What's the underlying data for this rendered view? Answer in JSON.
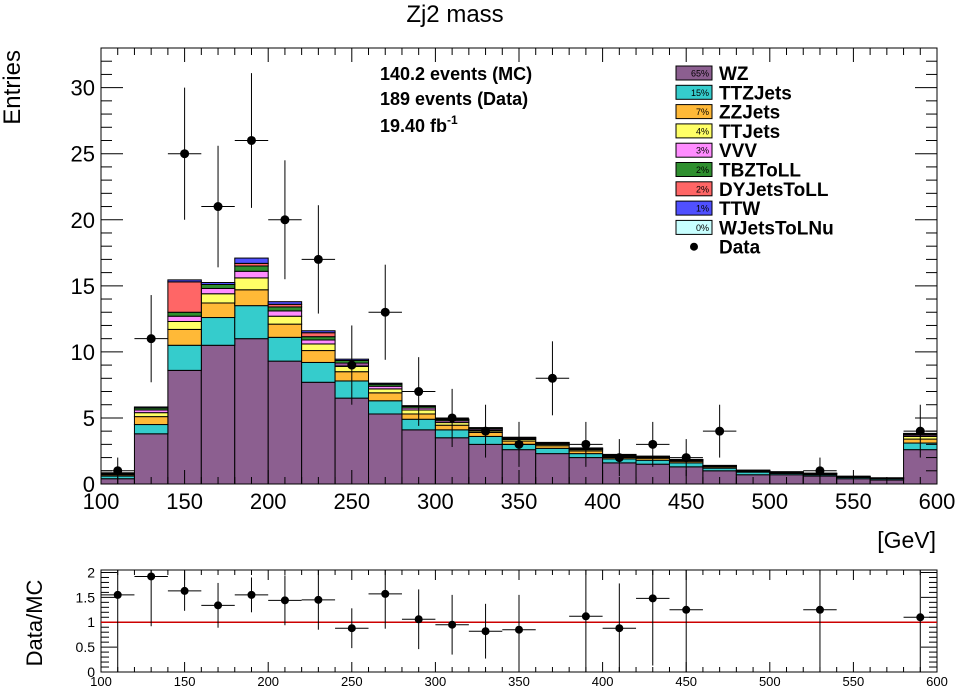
{
  "chart_data": [
    {
      "type": "bar",
      "stacked": true,
      "title": "Zj2 mass",
      "ylabel": "Entries",
      "xlabel": "[GeV]",
      "xlim": [
        100,
        600
      ],
      "ylim": [
        0,
        33
      ],
      "x_ticks": [
        "100",
        "150",
        "200",
        "250",
        "300",
        "350",
        "400",
        "450",
        "500",
        "550",
        "600"
      ],
      "y_ticks": [
        "0",
        "5",
        "10",
        "15",
        "20",
        "25",
        "30"
      ],
      "bin_edges": [
        100,
        120,
        140,
        160,
        180,
        200,
        220,
        240,
        260,
        280,
        300,
        320,
        340,
        360,
        380,
        400,
        420,
        440,
        460,
        480,
        500,
        520,
        540,
        560,
        580,
        600
      ],
      "info": {
        "mc_events": "140.2 events (MC)",
        "data_events": "189 events (Data)",
        "lumi": "19.40 fb",
        "lumi_exp": "-1"
      },
      "series": [
        {
          "name": "WZ",
          "pct": "65%",
          "color": "#8c5f90",
          "values": [
            0.4,
            3.8,
            8.6,
            10.5,
            11.0,
            9.3,
            7.7,
            6.5,
            5.3,
            4.1,
            3.5,
            3.0,
            2.6,
            2.3,
            2.0,
            1.6,
            1.5,
            1.3,
            1.0,
            0.7,
            0.7,
            0.6,
            0.4,
            0.3,
            2.6
          ]
        },
        {
          "name": "TTZJets",
          "pct": "15%",
          "color": "#35cccc",
          "values": [
            0.2,
            0.7,
            1.9,
            2.1,
            2.5,
            1.8,
            1.5,
            1.3,
            1.0,
            0.8,
            0.6,
            0.6,
            0.4,
            0.4,
            0.3,
            0.3,
            0.3,
            0.3,
            0.2,
            0.2,
            0.1,
            0.1,
            0.1,
            0.1,
            0.5
          ]
        },
        {
          "name": "ZZJets",
          "pct": "7%",
          "color": "#ffb937",
          "values": [
            0.1,
            0.6,
            1.2,
            1.1,
            1.2,
            1.0,
            0.9,
            0.7,
            0.6,
            0.4,
            0.35,
            0.3,
            0.25,
            0.2,
            0.2,
            0.15,
            0.15,
            0.12,
            0.1,
            0.06,
            0.05,
            0.05,
            0.05,
            0.03,
            0.3
          ]
        },
        {
          "name": "TTJets",
          "pct": "4%",
          "color": "#ffff66",
          "values": [
            0.05,
            0.3,
            0.6,
            0.7,
            0.9,
            0.6,
            0.5,
            0.4,
            0.3,
            0.3,
            0.2,
            0.15,
            0.12,
            0.1,
            0.1,
            0.08,
            0.07,
            0.06,
            0.05,
            0.04,
            0.03,
            0.03,
            0.02,
            0.02,
            0.2
          ]
        },
        {
          "name": "VVV",
          "pct": "3%",
          "color": "#ff8cff",
          "values": [
            0.05,
            0.2,
            0.4,
            0.4,
            0.5,
            0.4,
            0.3,
            0.25,
            0.2,
            0.15,
            0.12,
            0.1,
            0.08,
            0.07,
            0.06,
            0.05,
            0.04,
            0.04,
            0.03,
            0.02,
            0.02,
            0.02,
            0.01,
            0.01,
            0.1
          ]
        },
        {
          "name": "TBZToLL",
          "pct": "2%",
          "color": "#2f8f2f",
          "values": [
            0.03,
            0.15,
            0.3,
            0.3,
            0.4,
            0.3,
            0.25,
            0.2,
            0.15,
            0.12,
            0.1,
            0.08,
            0.06,
            0.05,
            0.05,
            0.04,
            0.03,
            0.03,
            0.02,
            0.02,
            0.02,
            0.01,
            0.01,
            0.01,
            0.08
          ]
        },
        {
          "name": "DYJetsToLL",
          "pct": "2%",
          "color": "#ff6666",
          "values": [
            0.0,
            0.0,
            2.3,
            0.0,
            0.2,
            0.2,
            0.3,
            0.0,
            0.0,
            0.0,
            0.0,
            0.0,
            0.0,
            0.0,
            0.0,
            0.0,
            0.0,
            0.0,
            0.0,
            0.0,
            0.0,
            0.0,
            0.0,
            0.0,
            0.0
          ]
        },
        {
          "name": "TTW",
          "pct": "1%",
          "color": "#5050ff",
          "values": [
            0.02,
            0.08,
            0.15,
            0.15,
            0.4,
            0.2,
            0.15,
            0.1,
            0.08,
            0.06,
            0.05,
            0.04,
            0.03,
            0.03,
            0.02,
            0.02,
            0.02,
            0.01,
            0.01,
            0.01,
            0.01,
            0.01,
            0.0,
            0.0,
            0.05
          ]
        },
        {
          "name": "WJetsToLNu",
          "pct": "0%",
          "color": "#c8ffff",
          "values": [
            0.0,
            0.0,
            0.0,
            0.0,
            0.0,
            0.0,
            0.0,
            0.0,
            0.0,
            0.0,
            0.0,
            0.0,
            0.0,
            0.0,
            0.0,
            0.0,
            0.0,
            0.0,
            0.0,
            0.0,
            0.0,
            0.0,
            0.0,
            0.0,
            0.0
          ]
        }
      ],
      "data_series": {
        "name": "Data",
        "points": [
          {
            "x": 110,
            "y": 1,
            "err": 1.0
          },
          {
            "x": 130,
            "y": 11,
            "err": 3.3
          },
          {
            "x": 150,
            "y": 25,
            "err": 5.0
          },
          {
            "x": 170,
            "y": 21,
            "err": 4.6
          },
          {
            "x": 190,
            "y": 26,
            "err": 5.1
          },
          {
            "x": 210,
            "y": 20,
            "err": 4.5
          },
          {
            "x": 230,
            "y": 17,
            "err": 4.1
          },
          {
            "x": 250,
            "y": 9,
            "err": 3.0
          },
          {
            "x": 270,
            "y": 13,
            "err": 3.6
          },
          {
            "x": 290,
            "y": 7,
            "err": 2.6
          },
          {
            "x": 310,
            "y": 5,
            "err": 2.2
          },
          {
            "x": 330,
            "y": 4,
            "err": 2.0
          },
          {
            "x": 350,
            "y": 3,
            "err": 1.7
          },
          {
            "x": 370,
            "y": 8,
            "err": 2.8
          },
          {
            "x": 390,
            "y": 3,
            "err": 1.7
          },
          {
            "x": 410,
            "y": 2,
            "err": 1.4
          },
          {
            "x": 430,
            "y": 3,
            "err": 1.7
          },
          {
            "x": 450,
            "y": 2,
            "err": 1.4
          },
          {
            "x": 470,
            "y": 4,
            "err": 2.0
          },
          {
            "x": 530,
            "y": 1,
            "err": 1.0
          },
          {
            "x": 590,
            "y": 4,
            "err": 2.0
          }
        ]
      }
    },
    {
      "type": "scatter",
      "ylabel": "Data/MC",
      "xlim": [
        100,
        600
      ],
      "ylim": [
        0,
        2.05
      ],
      "x_ticks": [
        "100",
        "150",
        "200",
        "250",
        "300",
        "350",
        "400",
        "450",
        "500",
        "550",
        "600"
      ],
      "y_ticks": [
        "0",
        "0.5",
        "1",
        "1.5",
        "2"
      ],
      "reference_line": 1,
      "reference_color": "#cc0000",
      "points": [
        {
          "x": 110,
          "y": 1.55,
          "err": 1.6
        },
        {
          "x": 130,
          "y": 1.92,
          "err": 1.0
        },
        {
          "x": 150,
          "y": 1.63,
          "err": 0.4
        },
        {
          "x": 170,
          "y": 1.34,
          "err": 0.45
        },
        {
          "x": 190,
          "y": 1.55,
          "err": 0.35
        },
        {
          "x": 210,
          "y": 1.44,
          "err": 0.5
        },
        {
          "x": 230,
          "y": 1.45,
          "err": 0.6
        },
        {
          "x": 250,
          "y": 0.88,
          "err": 0.4
        },
        {
          "x": 270,
          "y": 1.57,
          "err": 0.7
        },
        {
          "x": 290,
          "y": 1.06,
          "err": 0.6
        },
        {
          "x": 310,
          "y": 0.95,
          "err": 0.6
        },
        {
          "x": 330,
          "y": 0.82,
          "err": 0.55
        },
        {
          "x": 350,
          "y": 0.85,
          "err": 0.7
        },
        {
          "x": 390,
          "y": 1.12,
          "err": 1.2
        },
        {
          "x": 410,
          "y": 0.88,
          "err": 0.9
        },
        {
          "x": 430,
          "y": 1.48,
          "err": 1.35
        },
        {
          "x": 450,
          "y": 1.25,
          "err": 1.3
        },
        {
          "x": 530,
          "y": 1.25,
          "err": 1.3
        },
        {
          "x": 590,
          "y": 1.1,
          "err": 1.1
        }
      ]
    }
  ]
}
